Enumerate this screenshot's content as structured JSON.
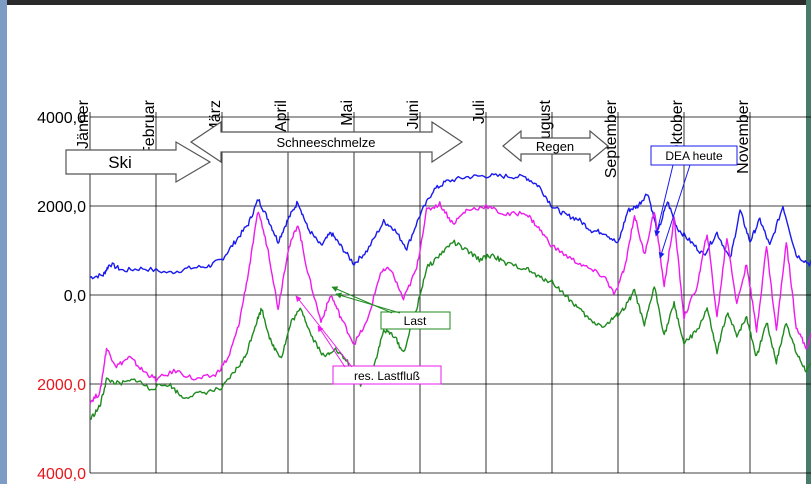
{
  "colors": {
    "frame_left": "#7e9bc4",
    "frame_top": "#2a2a2a",
    "frame_right": "#4a7a6a",
    "neg_tick": "#e8161b",
    "dea": "#1a1aee",
    "res": "#ee1aee",
    "last": "#1f8a1f",
    "grid": "#000000"
  },
  "chart_data": {
    "type": "line",
    "months": [
      "Jänner",
      "Februar",
      "März",
      "April",
      "Mai",
      "Juni",
      "Juli",
      "August",
      "September",
      "Oktober",
      "November"
    ],
    "yticks": [
      {
        "value": 4000,
        "label": "4000,0",
        "negative": false
      },
      {
        "value": 2000,
        "label": "2000,0",
        "negative": false
      },
      {
        "value": 0,
        "label": "0,0",
        "negative": false
      },
      {
        "value": -2000,
        "label": "2000,0",
        "negative": true
      },
      {
        "value": -4000,
        "label": "4000,0",
        "negative": true
      }
    ],
    "ylim": [
      -4000,
      4000
    ],
    "xlim": [
      0,
      12
    ],
    "grid": true,
    "annotations": {
      "ski": "Ski",
      "snowmelt": "Schneeschmelze",
      "rain": "Regen",
      "dea_label": "DEA heute",
      "last_label": "Last",
      "res_label": "res. Lastfluß"
    },
    "series": [
      {
        "name": "DEA heute",
        "key": "dea",
        "points": [
          [
            0.0,
            400
          ],
          [
            0.2,
            450
          ],
          [
            0.3,
            700
          ],
          [
            0.5,
            550
          ],
          [
            0.8,
            600
          ],
          [
            1.2,
            500
          ],
          [
            1.5,
            600
          ],
          [
            1.8,
            650
          ],
          [
            2.0,
            800
          ],
          [
            2.2,
            1200
          ],
          [
            2.4,
            1600
          ],
          [
            2.55,
            2150
          ],
          [
            2.7,
            1700
          ],
          [
            2.85,
            1200
          ],
          [
            3.0,
            1700
          ],
          [
            3.15,
            2100
          ],
          [
            3.3,
            1500
          ],
          [
            3.5,
            1100
          ],
          [
            3.65,
            1400
          ],
          [
            3.8,
            1100
          ],
          [
            4.0,
            700
          ],
          [
            4.2,
            1000
          ],
          [
            4.45,
            1650
          ],
          [
            4.6,
            1500
          ],
          [
            4.8,
            1050
          ],
          [
            5.0,
            1800
          ],
          [
            5.2,
            2350
          ],
          [
            5.4,
            2550
          ],
          [
            5.7,
            2650
          ],
          [
            6.0,
            2680
          ],
          [
            6.3,
            2670
          ],
          [
            6.6,
            2650
          ],
          [
            6.8,
            2450
          ],
          [
            7.0,
            2000
          ],
          [
            7.2,
            1800
          ],
          [
            7.4,
            1700
          ],
          [
            7.6,
            1450
          ],
          [
            7.8,
            1400
          ],
          [
            8.0,
            1150
          ],
          [
            8.15,
            1900
          ],
          [
            8.3,
            2000
          ],
          [
            8.45,
            2300
          ],
          [
            8.6,
            1400
          ],
          [
            8.75,
            2100
          ],
          [
            8.9,
            1500
          ],
          [
            9.1,
            1200
          ],
          [
            9.3,
            900
          ],
          [
            9.5,
            1400
          ],
          [
            9.7,
            800
          ],
          [
            9.85,
            1900
          ],
          [
            10.0,
            1200
          ],
          [
            10.15,
            1700
          ],
          [
            10.3,
            1100
          ],
          [
            10.5,
            2000
          ],
          [
            10.7,
            900
          ],
          [
            10.9,
            700
          ],
          [
            11.1,
            1100
          ],
          [
            11.3,
            1200
          ],
          [
            11.5,
            800
          ],
          [
            11.8,
            450
          ],
          [
            12.0,
            400
          ]
        ]
      },
      {
        "name": "res. Lastfluß",
        "key": "res",
        "points": [
          [
            0.0,
            -2400
          ],
          [
            0.15,
            -2200
          ],
          [
            0.25,
            -1200
          ],
          [
            0.4,
            -1600
          ],
          [
            0.6,
            -1400
          ],
          [
            0.8,
            -1700
          ],
          [
            1.0,
            -1900
          ],
          [
            1.3,
            -1700
          ],
          [
            1.6,
            -1900
          ],
          [
            1.9,
            -1800
          ],
          [
            2.1,
            -1400
          ],
          [
            2.25,
            -700
          ],
          [
            2.4,
            500
          ],
          [
            2.55,
            1900
          ],
          [
            2.7,
            1000
          ],
          [
            2.85,
            -300
          ],
          [
            3.0,
            1000
          ],
          [
            3.15,
            1600
          ],
          [
            3.3,
            500
          ],
          [
            3.5,
            -600
          ],
          [
            3.65,
            0
          ],
          [
            3.8,
            -500
          ],
          [
            4.0,
            -1100
          ],
          [
            4.2,
            -600
          ],
          [
            4.4,
            500
          ],
          [
            4.55,
            600
          ],
          [
            4.75,
            -100
          ],
          [
            4.95,
            600
          ],
          [
            5.1,
            1900
          ],
          [
            5.3,
            2050
          ],
          [
            5.5,
            1600
          ],
          [
            5.7,
            1900
          ],
          [
            6.0,
            2000
          ],
          [
            6.3,
            1800
          ],
          [
            6.6,
            1850
          ],
          [
            6.8,
            1500
          ],
          [
            7.0,
            1100
          ],
          [
            7.3,
            800
          ],
          [
            7.55,
            600
          ],
          [
            7.8,
            400
          ],
          [
            7.95,
            0
          ],
          [
            8.1,
            600
          ],
          [
            8.25,
            1800
          ],
          [
            8.4,
            900
          ],
          [
            8.55,
            1900
          ],
          [
            8.7,
            200
          ],
          [
            8.85,
            1700
          ],
          [
            9.0,
            -500
          ],
          [
            9.2,
            200
          ],
          [
            9.35,
            1400
          ],
          [
            9.5,
            -500
          ],
          [
            9.65,
            1300
          ],
          [
            9.8,
            -200
          ],
          [
            9.95,
            700
          ],
          [
            10.1,
            -800
          ],
          [
            10.25,
            1100
          ],
          [
            10.4,
            -800
          ],
          [
            10.55,
            1200
          ],
          [
            10.7,
            -700
          ],
          [
            10.85,
            -1200
          ],
          [
            11.05,
            -400
          ],
          [
            11.25,
            -700
          ],
          [
            11.45,
            -1200
          ],
          [
            11.65,
            -500
          ],
          [
            11.85,
            -1400
          ],
          [
            12.0,
            -1600
          ]
        ]
      },
      {
        "name": "Last",
        "key": "last",
        "points": [
          [
            0.0,
            -2800
          ],
          [
            0.15,
            -2500
          ],
          [
            0.25,
            -1900
          ],
          [
            0.45,
            -2000
          ],
          [
            0.7,
            -1900
          ],
          [
            0.9,
            -2100
          ],
          [
            1.2,
            -2000
          ],
          [
            1.4,
            -2300
          ],
          [
            1.7,
            -2200
          ],
          [
            2.0,
            -2100
          ],
          [
            2.2,
            -1700
          ],
          [
            2.35,
            -1400
          ],
          [
            2.5,
            -700
          ],
          [
            2.6,
            -300
          ],
          [
            2.75,
            -1100
          ],
          [
            2.9,
            -1400
          ],
          [
            3.05,
            -600
          ],
          [
            3.2,
            -300
          ],
          [
            3.35,
            -900
          ],
          [
            3.55,
            -1400
          ],
          [
            3.7,
            -1200
          ],
          [
            3.9,
            -1500
          ],
          [
            4.1,
            -2000
          ],
          [
            4.3,
            -1600
          ],
          [
            4.45,
            -800
          ],
          [
            4.6,
            -900
          ],
          [
            4.75,
            -1300
          ],
          [
            4.95,
            -300
          ],
          [
            5.1,
            600
          ],
          [
            5.3,
            900
          ],
          [
            5.5,
            1200
          ],
          [
            5.7,
            1000
          ],
          [
            5.9,
            800
          ],
          [
            6.1,
            900
          ],
          [
            6.3,
            700
          ],
          [
            6.6,
            600
          ],
          [
            6.8,
            400
          ],
          [
            7.0,
            300
          ],
          [
            7.2,
            0
          ],
          [
            7.4,
            -300
          ],
          [
            7.6,
            -600
          ],
          [
            7.8,
            -700
          ],
          [
            7.95,
            -500
          ],
          [
            8.1,
            -300
          ],
          [
            8.25,
            100
          ],
          [
            8.4,
            -700
          ],
          [
            8.55,
            200
          ],
          [
            8.7,
            -900
          ],
          [
            8.85,
            -200
          ],
          [
            9.0,
            -1100
          ],
          [
            9.2,
            -800
          ],
          [
            9.35,
            -300
          ],
          [
            9.5,
            -1300
          ],
          [
            9.65,
            -400
          ],
          [
            9.8,
            -900
          ],
          [
            9.95,
            -500
          ],
          [
            10.1,
            -1400
          ],
          [
            10.25,
            -600
          ],
          [
            10.4,
            -1500
          ],
          [
            10.55,
            -600
          ],
          [
            10.7,
            -1300
          ],
          [
            10.85,
            -1700
          ],
          [
            11.05,
            -1400
          ],
          [
            11.25,
            -1100
          ],
          [
            11.45,
            -1500
          ],
          [
            11.65,
            -1300
          ],
          [
            11.85,
            -1900
          ],
          [
            12.0,
            -2200
          ]
        ]
      }
    ]
  }
}
